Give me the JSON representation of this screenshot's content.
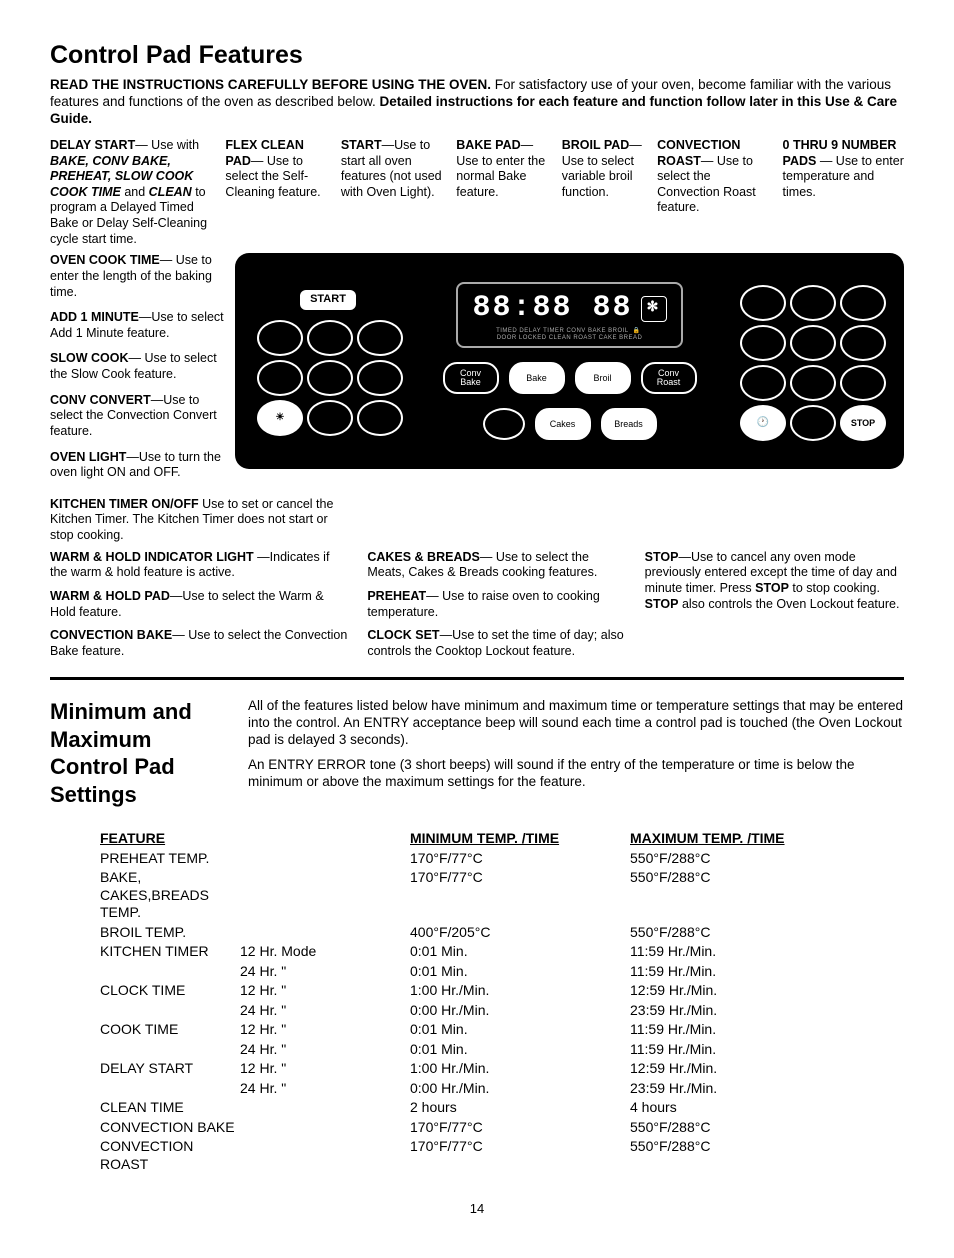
{
  "page_number": "14",
  "title1": "Control Pad Features",
  "intro_lead": "READ THE INSTRUCTIONS CAREFULLY BEFORE USING THE OVEN.",
  "intro_body": " For satisfactory use of your oven, become familiar with the various features and functions of the oven as described below.",
  "intro_bold_tail": " Detailed instructions for each feature and function follow later in this Use & Care Guide.",
  "top_features": {
    "delay_start": {
      "h": "DELAY START",
      "b1": "— Use with ",
      "i": "BAKE, CONV BAKE, PREHEAT, SLOW COOK COOK TIME",
      "b2": " and ",
      "i2": "CLEAN",
      "b3": " to program a Delayed Timed Bake or Delay Self-Cleaning cycle start time."
    },
    "flex_clean": {
      "h": "FLEX CLEAN PAD",
      "b": "— Use to select the Self-Cleaning feature."
    },
    "start": {
      "h": "START",
      "b": "—Use to start all oven features (not used with Oven Light)."
    },
    "bake_pad": {
      "h": "BAKE PAD",
      "b": "— Use to enter the normal Bake feature."
    },
    "broil": {
      "h": "BROIL PAD",
      "b": "— Use to select variable broil function."
    },
    "conv_roast": {
      "h": "CONVECTION ROAST",
      "b": "— Use to select the Convection Roast feature."
    },
    "numpads": {
      "h": "0 THRU 9 NUMBER PADS",
      "b": " — Use to enter temperature and times."
    }
  },
  "left_features": {
    "cook_time": {
      "h": "OVEN COOK TIME",
      "b": "— Use to enter the length of the baking time."
    },
    "add1": {
      "h": "ADD 1 MINUTE",
      "b": "—Use to select Add 1 Minute feature."
    },
    "slow": {
      "h": "SLOW COOK",
      "b": "— Use to select the Slow Cook feature."
    },
    "convconvert": {
      "h": "CONV CONVERT",
      "b": "—Use to select the Convection Convert feature."
    },
    "ovenlight": {
      "h": "OVEN LIGHT",
      "b": "—Use to turn the oven light ON and OFF."
    },
    "ktimer": {
      "h": "KITCHEN TIMER ON/OFF",
      "b": " Use  to set or cancel the Kitchen Timer. The Kitchen Timer does not start or stop cooking."
    }
  },
  "bottom_features": {
    "warmhold_ind": {
      "h": "WARM & HOLD INDICATOR LIGHT",
      "b": " —Indicates if the warm & hold feature is active."
    },
    "warmhold_pad": {
      "h": "WARM & HOLD PAD",
      "b": "—Use to select the Warm & Hold feature."
    },
    "convbake": {
      "h": "CONVECTION BAKE",
      "b": "— Use to select the Convection Bake feature."
    },
    "cakes": {
      "h": "CAKES & BREADS",
      "b": "— Use to select the Meats, Cakes & Breads cooking features."
    },
    "preheat": {
      "h": "PREHEAT",
      "b": "— Use to raise oven to cooking temperature."
    },
    "clockset": {
      "h": "CLOCK SET",
      "b": "—Use to set the time of day; also controls the Cooktop Lockout feature."
    },
    "stop": {
      "h": "STOP",
      "b1": "—Use to cancel any oven mode previously entered except the time of day and minute timer. Press ",
      "b2": "STOP",
      "b3": " to stop cooking. ",
      "b4": "STOP",
      "b5": " also controls the Oven Lockout feature."
    }
  },
  "panel": {
    "start_label": "START",
    "display": "88:88 88",
    "display_small1": "TIMED  DELAY  TIMER      CONV  BAKE  BROIL",
    "display_small2": "DOOR LOCKED  CLEAN     ROAST CAKE  BREAD",
    "btns_center_row1": [
      "Conv\nBake",
      "Bake",
      "Broil",
      "Conv\nRoast"
    ],
    "btns_center_row2": [
      "",
      "Cakes",
      "Breads"
    ],
    "stop_label": "STOP",
    "light_glyph": "☀",
    "clock_glyph": "🕐",
    "lock_glyph": "🔒",
    "fan_glyph": "✻"
  },
  "title2": "Minimum and Maximum Control Pad Settings",
  "s2_p1": "All of the features listed below have minimum and maximum time or temperature settings that may be entered into the control. An ENTRY acceptance beep will sound each time a control pad is touched (the Oven Lockout  pad is delayed 3 seconds).",
  "s2_p2": "An ENTRY ERROR tone (3 short beeps) will sound if the entry of the temperature or time is below the minimum or above the maximum settings for the feature.",
  "table": {
    "headers": [
      "FEATURE",
      "MINIMUM TEMP. /TIME",
      "MAXIMUM TEMP. /TIME"
    ],
    "rows": [
      {
        "f": "PREHEAT TEMP.",
        "sub": "",
        "min": "170°F/77°C",
        "max": "550°F/288°C"
      },
      {
        "f": "BAKE, CAKES,BREADS TEMP.",
        "sub": "",
        "min": "170°F/77°C",
        "max": "550°F/288°C"
      },
      {
        "f": "BROIL TEMP.",
        "sub": "",
        "min": "400°F/205°C",
        "max": "550°F/288°C"
      },
      {
        "f": "KITCHEN TIMER",
        "sub": "12 Hr. Mode",
        "min": "0:01 Min.",
        "max": "11:59 Hr./Min."
      },
      {
        "f": "",
        "sub": "24 Hr.    \"",
        "min": "0:01 Min.",
        "max": "11:59 Hr./Min."
      },
      {
        "f": "CLOCK TIME",
        "sub": "12 Hr.    \"",
        "min": "1:00 Hr./Min.",
        "max": "12:59 Hr./Min."
      },
      {
        "f": "",
        "sub": "24 Hr.    \"",
        "min": "0:00 Hr./Min.",
        "max": "23:59 Hr./Min."
      },
      {
        "f": "COOK TIME",
        "sub": "12 Hr.    \"",
        "min": "0:01 Min.",
        "max": "11:59 Hr./Min."
      },
      {
        "f": "",
        "sub": "24 Hr.    \"",
        "min": "0:01 Min.",
        "max": "11:59 Hr./Min."
      },
      {
        "f": "DELAY START",
        "sub": "12 Hr.    \"",
        "min": "1:00 Hr./Min.",
        "max": "12:59 Hr./Min."
      },
      {
        "f": "",
        "sub": "24 Hr.    \"",
        "min": "0:00 Hr./Min.",
        "max": "23:59 Hr./Min."
      },
      {
        "f": "CLEAN TIME",
        "sub": "",
        "min": "2 hours",
        "max": "4 hours"
      },
      {
        "f": "CONVECTION BAKE",
        "sub": "",
        "min": "170°F/77°C",
        "max": "550°F/288°C"
      },
      {
        "f": "CONVECTION ROAST",
        "sub": "",
        "min": "170°F/77°C",
        "max": "550°F/288°C"
      }
    ]
  }
}
